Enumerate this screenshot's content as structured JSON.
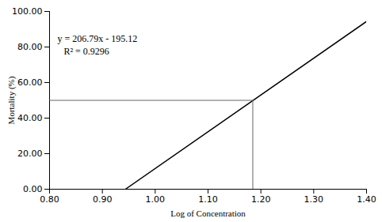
{
  "chart_data": {
    "type": "line",
    "xlabel": "Log of Concentration",
    "ylabel": "Mortality (%)",
    "annotations": [
      "y = 206.79x - 195.12",
      "R² = 0.9296"
    ],
    "series": [
      {
        "color": "#000000",
        "x": [
          0.9435659,
          1.4
        ],
        "values": [
          0,
          94.386
        ]
      },
      {
        "color": "#666666",
        "x": [
          0.8,
          1.1847
        ],
        "values": [
          50.0,
          50.0
        ]
      },
      {
        "color": "#666666",
        "x": [
          1.1847,
          1.1847
        ],
        "values": [
          0,
          50.0
        ]
      }
    ],
    "xlim": [
      0.8,
      1.4
    ],
    "ylim": [
      0.0,
      100.0
    ],
    "xticks": [
      {
        "value": 0.8,
        "label": "0.80"
      },
      {
        "value": 0.9,
        "label": "0.90"
      },
      {
        "value": 1.0,
        "label": "1.00"
      },
      {
        "value": 1.1,
        "label": "1.10"
      },
      {
        "value": 1.2,
        "label": "1.20"
      },
      {
        "value": 1.3,
        "label": "1.30"
      },
      {
        "value": 1.4,
        "label": "1.40"
      }
    ],
    "yticks": [
      {
        "value": 0,
        "label": "0.00"
      },
      {
        "value": 20,
        "label": "20.00"
      },
      {
        "value": 40,
        "label": "40.00"
      },
      {
        "value": 60,
        "label": "60.00"
      },
      {
        "value": 80,
        "label": "80.00"
      },
      {
        "value": 100,
        "label": "100.00"
      }
    ],
    "grid": false
  }
}
